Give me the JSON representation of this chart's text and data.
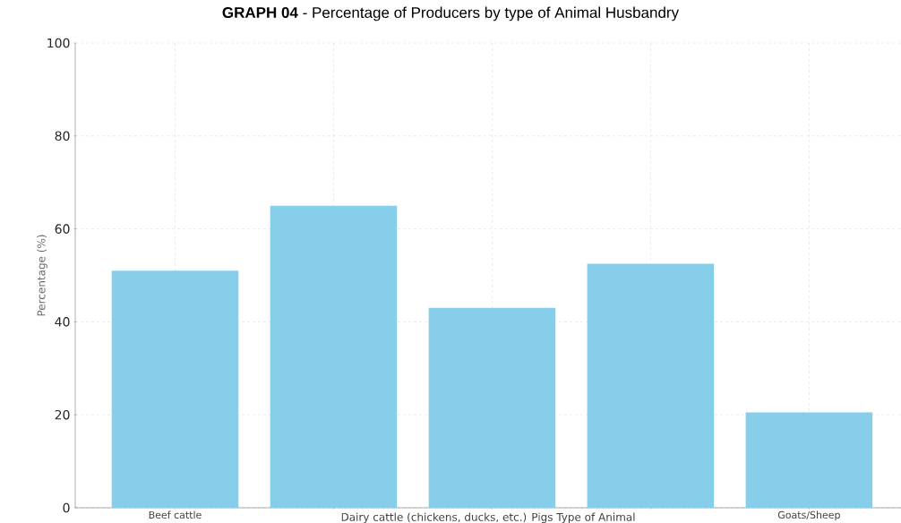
{
  "chart_data": {
    "type": "bar",
    "title": "**GRAPH 04** - Percentage of Producers by type of Animal Husbandry",
    "xlabel": "Dairy cattle (chickens, ducks, etc.) Pigs Type of Animal",
    "ylabel": "Percentage (%)",
    "categories": [
      "Beef cattle",
      null,
      null,
      null,
      "Goats/Sheep"
    ],
    "values": [
      51,
      65,
      43,
      52.5,
      20.5
    ],
    "color": "#87ceeb",
    "ylim": [
      0,
      100
    ],
    "yticks": [
      0,
      20,
      40,
      60,
      80,
      100
    ],
    "grid": true
  }
}
